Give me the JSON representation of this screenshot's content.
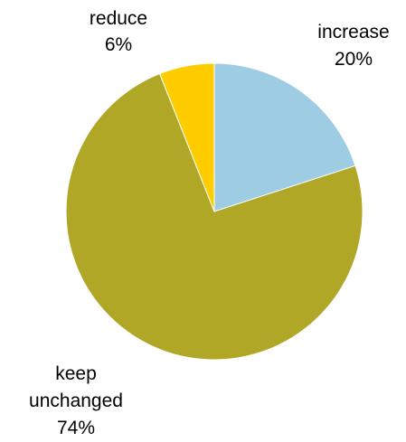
{
  "chart_data": {
    "type": "pie",
    "title": "",
    "slices": [
      {
        "label": "increase",
        "value": 20,
        "value_label": "20%",
        "color": "#9ECDE3"
      },
      {
        "label": "keep unchanged",
        "value": 74,
        "value_label": "74%",
        "color": "#B0A726"
      },
      {
        "label": "reduce",
        "value": 6,
        "value_label": "6%",
        "color": "#FFCC00"
      }
    ],
    "legend": "none",
    "start": "12 o'clock, clockwise"
  }
}
